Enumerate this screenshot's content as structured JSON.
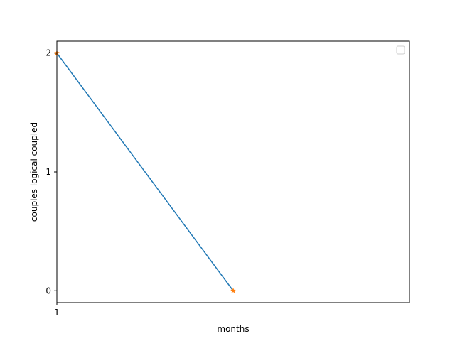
{
  "chart_data": {
    "type": "line",
    "title": "",
    "xlabel": "months",
    "ylabel": "couples logical coupled",
    "xlim": [
      1,
      3
    ],
    "ylim": [
      -0.1,
      2.1
    ],
    "xticks": [
      1
    ],
    "xtick_labels": [
      "1"
    ],
    "yticks": [
      0,
      1,
      2
    ],
    "ytick_labels": [
      "0",
      "1",
      "2"
    ],
    "grid": false,
    "legend": {
      "placement": "upper-right",
      "entries": []
    },
    "series": [
      {
        "kind": "line",
        "color": "#1f77b4",
        "x": [
          1,
          2
        ],
        "y": [
          2,
          0
        ]
      },
      {
        "kind": "markers",
        "marker": "star",
        "color": "#ff7f0e",
        "x": [
          1,
          2
        ],
        "y": [
          2,
          0
        ]
      }
    ]
  }
}
